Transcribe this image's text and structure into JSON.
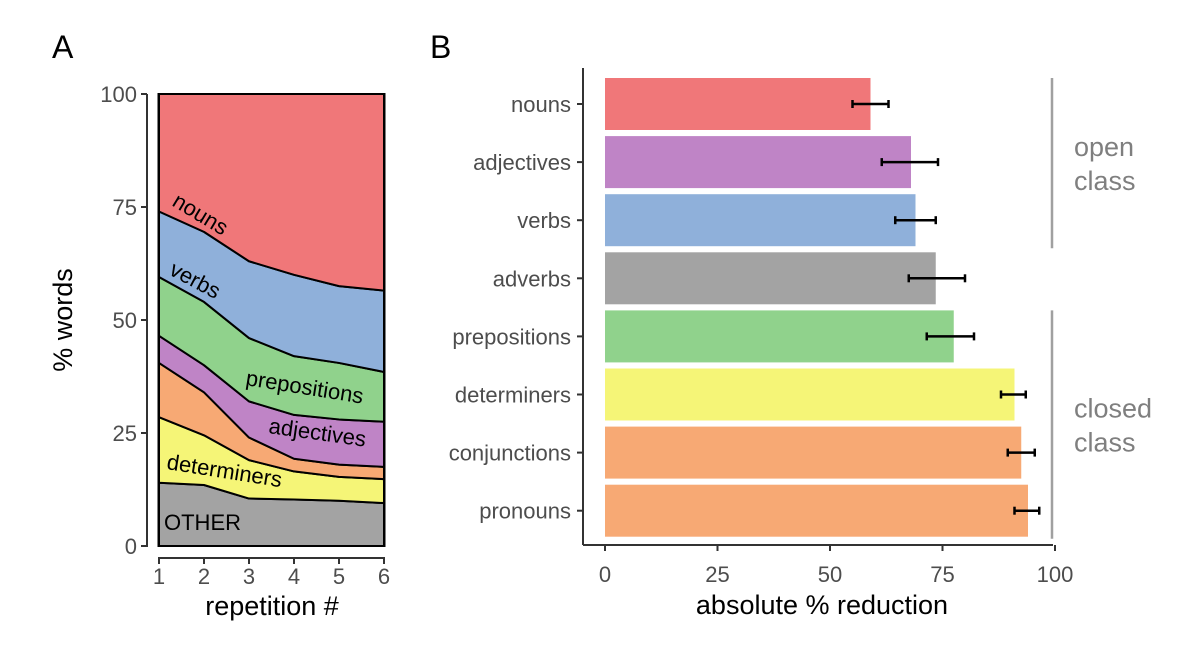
{
  "panels": {
    "a_label": "A",
    "b_label": "B"
  },
  "chart_data": [
    {
      "type": "area",
      "stacked": true,
      "x": [
        1,
        2,
        3,
        4,
        5,
        6
      ],
      "xlabel": "repetition #",
      "ylabel": "% words",
      "xticks": [
        "1",
        "2",
        "3",
        "4",
        "5",
        "6"
      ],
      "yticks": [
        "0",
        "25",
        "50",
        "75",
        "100"
      ],
      "ylim": [
        0,
        100
      ],
      "xlim": [
        1,
        6
      ],
      "grid": false,
      "legend": "none (labels placed inside bands)",
      "series": [
        {
          "name": "OTHER",
          "color": "#a3a3a3",
          "values": [
            14,
            13.5,
            10.5,
            10.3,
            10,
            9.5
          ]
        },
        {
          "name": "determiners",
          "color": "#f5f577",
          "values": [
            14.5,
            11,
            8.5,
            6.2,
            5.3,
            5.3
          ]
        },
        {
          "name": "",
          "color": "#f7a974",
          "values": [
            12,
            9.5,
            5,
            2.8,
            2.7,
            2.7
          ]
        },
        {
          "name": "adjectives",
          "color": "#bf84c6",
          "values": [
            6,
            6,
            8,
            9.7,
            10,
            10
          ]
        },
        {
          "name": "prepositions",
          "color": "#90d28c",
          "values": [
            13,
            14,
            14,
            13,
            12.5,
            11
          ]
        },
        {
          "name": "verbs",
          "color": "#8fb0da",
          "values": [
            14.5,
            15.5,
            17,
            18,
            17,
            18
          ]
        },
        {
          "name": "nouns",
          "color": "#f07779",
          "values": [
            26,
            30.5,
            37,
            40,
            42.5,
            43.5
          ]
        }
      ]
    },
    {
      "type": "bar",
      "orientation": "horizontal",
      "xlabel": "absolute % reduction",
      "xticks": [
        "0",
        "25",
        "50",
        "75",
        "100"
      ],
      "xlim": [
        0,
        100
      ],
      "grid": false,
      "categories": [
        "nouns",
        "adjectives",
        "verbs",
        "adverbs",
        "prepositions",
        "determiners",
        "conjunctions",
        "pronouns"
      ],
      "values": [
        59,
        68,
        69,
        73.5,
        77.5,
        91,
        92.5,
        94
      ],
      "error": [
        [
          55,
          63
        ],
        [
          61.5,
          74
        ],
        [
          64.5,
          73.5
        ],
        [
          67.5,
          80
        ],
        [
          71.5,
          82
        ],
        [
          88,
          93.5
        ],
        [
          89.5,
          95.5
        ],
        [
          91,
          96.5
        ]
      ],
      "colors": [
        "#f07779",
        "#bf84c6",
        "#8fb0da",
        "#a3a3a3",
        "#90d28c",
        "#f5f577",
        "#f7a974",
        "#f7a974"
      ],
      "groups": [
        {
          "label_lines": [
            "open",
            "class"
          ],
          "from": "nouns",
          "to": "verbs"
        },
        {
          "label_lines": [
            "closed",
            "class"
          ],
          "from": "prepositions",
          "to": "pronouns"
        }
      ]
    }
  ]
}
